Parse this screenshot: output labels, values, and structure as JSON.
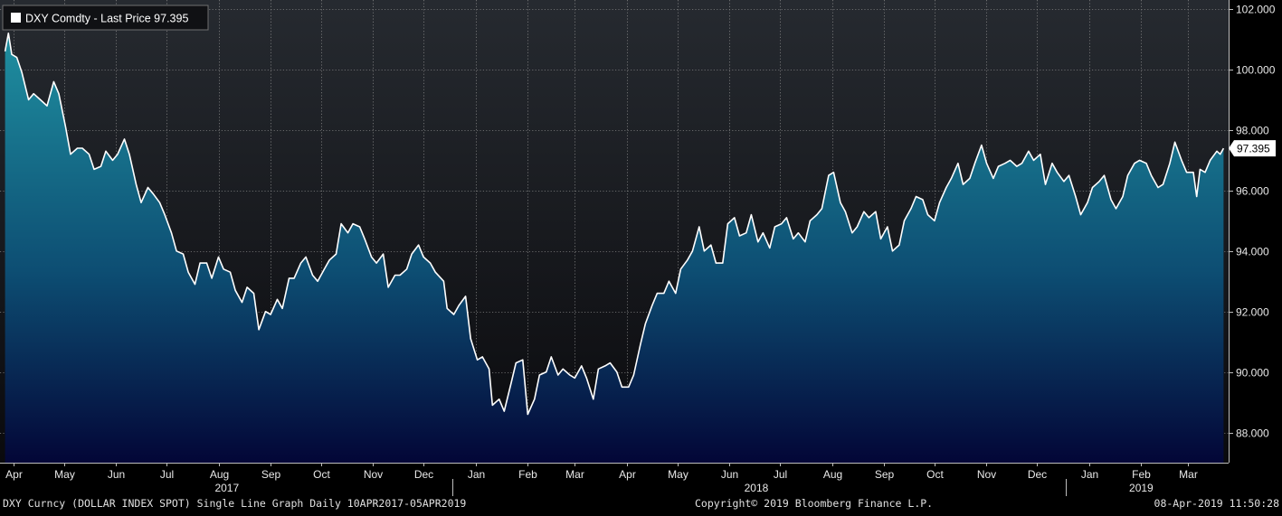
{
  "legend": {
    "label": "DXY Comdty - Last Price 97.395",
    "swatch_color": "#ffffff"
  },
  "last_price_label": "97.395",
  "footer": {
    "left": "DXY Curncy (DOLLAR INDEX SPOT) Single Line Graph  Daily 10APR2017-05APR2019",
    "center": "Copyright© 2019 Bloomberg Finance L.P.",
    "right": "08-Apr-2019 11:50:28"
  },
  "colors": {
    "background": "#000000",
    "plot_top": "#262a30",
    "plot_bottom": "#0a0a0d",
    "area_top": "#1f8fa0",
    "area_mid": "#0d4e73",
    "area_bottom": "#030637",
    "line": "#ffffff",
    "grid": "#8a8a8a"
  },
  "chart_data": {
    "type": "area",
    "title": "DXY Comdty - Last Price 97.395",
    "xlabel": "",
    "ylabel": "",
    "ylim": [
      87,
      102.3
    ],
    "yticks": [
      88,
      90,
      92,
      94,
      96,
      98,
      100,
      102
    ],
    "ytick_labels": [
      "88.000",
      "90.000",
      "92.000",
      "94.000",
      "96.000",
      "98.000",
      "100.000",
      "102.000"
    ],
    "xlim": [
      "2017-04-07",
      "2019-04-08"
    ],
    "grid": true,
    "legend_position": "top-left",
    "x_month_ticks": [
      {
        "label": "Apr",
        "date": "2017-04-15"
      },
      {
        "label": "May",
        "date": "2017-05-15"
      },
      {
        "label": "Jun",
        "date": "2017-06-15"
      },
      {
        "label": "Jul",
        "date": "2017-07-15"
      },
      {
        "label": "Aug",
        "date": "2017-08-15"
      },
      {
        "label": "Sep",
        "date": "2017-09-15"
      },
      {
        "label": "Oct",
        "date": "2017-10-15"
      },
      {
        "label": "Nov",
        "date": "2017-11-15"
      },
      {
        "label": "Dec",
        "date": "2017-12-15"
      },
      {
        "label": "Jan",
        "date": "2018-01-15"
      },
      {
        "label": "Feb",
        "date": "2018-02-15"
      },
      {
        "label": "Mar",
        "date": "2018-03-15"
      },
      {
        "label": "Apr",
        "date": "2018-04-15"
      },
      {
        "label": "May",
        "date": "2018-05-15"
      },
      {
        "label": "Jun",
        "date": "2018-06-15"
      },
      {
        "label": "Jul",
        "date": "2018-07-15"
      },
      {
        "label": "Aug",
        "date": "2018-08-15"
      },
      {
        "label": "Sep",
        "date": "2018-09-15"
      },
      {
        "label": "Oct",
        "date": "2018-10-15"
      },
      {
        "label": "Nov",
        "date": "2018-11-15"
      },
      {
        "label": "Dec",
        "date": "2018-12-15"
      },
      {
        "label": "Jan",
        "date": "2019-01-15"
      },
      {
        "label": "Feb",
        "date": "2019-02-15"
      },
      {
        "label": "Mar",
        "date": "2019-03-15"
      }
    ],
    "x_year_labels": [
      {
        "label": "2017",
        "date": "2017-08-20"
      },
      {
        "label": "2018",
        "date": "2018-07-01"
      },
      {
        "label": "2019",
        "date": "2019-02-15"
      }
    ],
    "year_boundaries": [
      "2018-01-01",
      "2019-01-01"
    ],
    "series": [
      {
        "name": "DXY Comdty - Last Price",
        "points": [
          [
            "2017-04-10",
            100.6
          ],
          [
            "2017-04-12",
            101.2
          ],
          [
            "2017-04-14",
            100.5
          ],
          [
            "2017-04-17",
            100.4
          ],
          [
            "2017-04-20",
            99.9
          ],
          [
            "2017-04-24",
            99.0
          ],
          [
            "2017-04-27",
            99.2
          ],
          [
            "2017-05-01",
            99.0
          ],
          [
            "2017-05-05",
            98.8
          ],
          [
            "2017-05-09",
            99.6
          ],
          [
            "2017-05-12",
            99.2
          ],
          [
            "2017-05-16",
            98.1
          ],
          [
            "2017-05-19",
            97.2
          ],
          [
            "2017-05-23",
            97.4
          ],
          [
            "2017-05-26",
            97.4
          ],
          [
            "2017-05-30",
            97.2
          ],
          [
            "2017-06-02",
            96.7
          ],
          [
            "2017-06-06",
            96.8
          ],
          [
            "2017-06-09",
            97.3
          ],
          [
            "2017-06-13",
            97.0
          ],
          [
            "2017-06-16",
            97.2
          ],
          [
            "2017-06-20",
            97.7
          ],
          [
            "2017-06-23",
            97.2
          ],
          [
            "2017-06-27",
            96.2
          ],
          [
            "2017-06-30",
            95.6
          ],
          [
            "2017-07-04",
            96.1
          ],
          [
            "2017-07-07",
            95.9
          ],
          [
            "2017-07-11",
            95.6
          ],
          [
            "2017-07-14",
            95.2
          ],
          [
            "2017-07-18",
            94.6
          ],
          [
            "2017-07-21",
            94.0
          ],
          [
            "2017-07-25",
            93.9
          ],
          [
            "2017-07-28",
            93.3
          ],
          [
            "2017-08-01",
            92.9
          ],
          [
            "2017-08-04",
            93.6
          ],
          [
            "2017-08-08",
            93.6
          ],
          [
            "2017-08-11",
            93.1
          ],
          [
            "2017-08-15",
            93.8
          ],
          [
            "2017-08-18",
            93.4
          ],
          [
            "2017-08-22",
            93.3
          ],
          [
            "2017-08-25",
            92.7
          ],
          [
            "2017-08-29",
            92.3
          ],
          [
            "2017-09-01",
            92.8
          ],
          [
            "2017-09-05",
            92.6
          ],
          [
            "2017-09-08",
            91.4
          ],
          [
            "2017-09-12",
            92.0
          ],
          [
            "2017-09-15",
            91.9
          ],
          [
            "2017-09-19",
            92.4
          ],
          [
            "2017-09-22",
            92.1
          ],
          [
            "2017-09-26",
            93.1
          ],
          [
            "2017-09-29",
            93.1
          ],
          [
            "2017-10-03",
            93.6
          ],
          [
            "2017-10-06",
            93.8
          ],
          [
            "2017-10-10",
            93.2
          ],
          [
            "2017-10-13",
            93.0
          ],
          [
            "2017-10-17",
            93.4
          ],
          [
            "2017-10-20",
            93.7
          ],
          [
            "2017-10-24",
            93.9
          ],
          [
            "2017-10-27",
            94.9
          ],
          [
            "2017-10-31",
            94.6
          ],
          [
            "2017-11-03",
            94.9
          ],
          [
            "2017-11-07",
            94.8
          ],
          [
            "2017-11-10",
            94.4
          ],
          [
            "2017-11-14",
            93.8
          ],
          [
            "2017-11-17",
            93.6
          ],
          [
            "2017-11-21",
            93.9
          ],
          [
            "2017-11-24",
            92.8
          ],
          [
            "2017-11-28",
            93.2
          ],
          [
            "2017-12-01",
            93.2
          ],
          [
            "2017-12-05",
            93.4
          ],
          [
            "2017-12-08",
            93.9
          ],
          [
            "2017-12-12",
            94.2
          ],
          [
            "2017-12-15",
            93.8
          ],
          [
            "2017-12-19",
            93.6
          ],
          [
            "2017-12-22",
            93.3
          ],
          [
            "2017-12-27",
            93.0
          ],
          [
            "2017-12-29",
            92.1
          ],
          [
            "2018-01-02",
            91.9
          ],
          [
            "2018-01-05",
            92.2
          ],
          [
            "2018-01-09",
            92.5
          ],
          [
            "2018-01-12",
            91.1
          ],
          [
            "2018-01-16",
            90.4
          ],
          [
            "2018-01-19",
            90.5
          ],
          [
            "2018-01-23",
            90.1
          ],
          [
            "2018-01-25",
            88.9
          ],
          [
            "2018-01-29",
            89.1
          ],
          [
            "2018-02-01",
            88.7
          ],
          [
            "2018-02-05",
            89.6
          ],
          [
            "2018-02-08",
            90.3
          ],
          [
            "2018-02-12",
            90.4
          ],
          [
            "2018-02-15",
            88.6
          ],
          [
            "2018-02-19",
            89.1
          ],
          [
            "2018-02-22",
            89.9
          ],
          [
            "2018-02-26",
            90.0
          ],
          [
            "2018-03-01",
            90.5
          ],
          [
            "2018-03-05",
            89.9
          ],
          [
            "2018-03-08",
            90.1
          ],
          [
            "2018-03-12",
            89.9
          ],
          [
            "2018-03-15",
            89.8
          ],
          [
            "2018-03-19",
            90.2
          ],
          [
            "2018-03-22",
            89.8
          ],
          [
            "2018-03-26",
            89.1
          ],
          [
            "2018-03-29",
            90.1
          ],
          [
            "2018-04-02",
            90.2
          ],
          [
            "2018-04-05",
            90.3
          ],
          [
            "2018-04-09",
            90.0
          ],
          [
            "2018-04-12",
            89.5
          ],
          [
            "2018-04-16",
            89.5
          ],
          [
            "2018-04-19",
            89.9
          ],
          [
            "2018-04-23",
            90.9
          ],
          [
            "2018-04-26",
            91.6
          ],
          [
            "2018-04-30",
            92.2
          ],
          [
            "2018-05-03",
            92.6
          ],
          [
            "2018-05-07",
            92.6
          ],
          [
            "2018-05-10",
            93.0
          ],
          [
            "2018-05-14",
            92.6
          ],
          [
            "2018-05-17",
            93.4
          ],
          [
            "2018-05-21",
            93.7
          ],
          [
            "2018-05-24",
            94.0
          ],
          [
            "2018-05-28",
            94.8
          ],
          [
            "2018-05-31",
            94.0
          ],
          [
            "2018-06-04",
            94.2
          ],
          [
            "2018-06-07",
            93.6
          ],
          [
            "2018-06-11",
            93.6
          ],
          [
            "2018-06-14",
            94.9
          ],
          [
            "2018-06-18",
            95.1
          ],
          [
            "2018-06-21",
            94.5
          ],
          [
            "2018-06-25",
            94.6
          ],
          [
            "2018-06-28",
            95.2
          ],
          [
            "2018-07-02",
            94.3
          ],
          [
            "2018-07-05",
            94.6
          ],
          [
            "2018-07-09",
            94.1
          ],
          [
            "2018-07-12",
            94.8
          ],
          [
            "2018-07-16",
            94.9
          ],
          [
            "2018-07-19",
            95.1
          ],
          [
            "2018-07-23",
            94.4
          ],
          [
            "2018-07-26",
            94.6
          ],
          [
            "2018-07-30",
            94.3
          ],
          [
            "2018-08-02",
            95.0
          ],
          [
            "2018-08-06",
            95.2
          ],
          [
            "2018-08-09",
            95.4
          ],
          [
            "2018-08-13",
            96.5
          ],
          [
            "2018-08-16",
            96.6
          ],
          [
            "2018-08-20",
            95.6
          ],
          [
            "2018-08-23",
            95.3
          ],
          [
            "2018-08-27",
            94.6
          ],
          [
            "2018-08-30",
            94.8
          ],
          [
            "2018-09-03",
            95.3
          ],
          [
            "2018-09-06",
            95.1
          ],
          [
            "2018-09-10",
            95.3
          ],
          [
            "2018-09-13",
            94.4
          ],
          [
            "2018-09-17",
            94.8
          ],
          [
            "2018-09-20",
            94.0
          ],
          [
            "2018-09-24",
            94.2
          ],
          [
            "2018-09-27",
            95.0
          ],
          [
            "2018-10-01",
            95.4
          ],
          [
            "2018-10-04",
            95.8
          ],
          [
            "2018-10-08",
            95.7
          ],
          [
            "2018-10-11",
            95.2
          ],
          [
            "2018-10-15",
            95.0
          ],
          [
            "2018-10-18",
            95.6
          ],
          [
            "2018-10-22",
            96.1
          ],
          [
            "2018-10-25",
            96.4
          ],
          [
            "2018-10-29",
            96.9
          ],
          [
            "2018-11-01",
            96.2
          ],
          [
            "2018-11-05",
            96.4
          ],
          [
            "2018-11-08",
            96.9
          ],
          [
            "2018-11-12",
            97.5
          ],
          [
            "2018-11-15",
            96.9
          ],
          [
            "2018-11-19",
            96.4
          ],
          [
            "2018-11-22",
            96.8
          ],
          [
            "2018-11-26",
            96.9
          ],
          [
            "2018-11-29",
            97.0
          ],
          [
            "2018-12-03",
            96.8
          ],
          [
            "2018-12-06",
            96.9
          ],
          [
            "2018-12-10",
            97.3
          ],
          [
            "2018-12-13",
            97.0
          ],
          [
            "2018-12-17",
            97.2
          ],
          [
            "2018-12-20",
            96.2
          ],
          [
            "2018-12-24",
            96.9
          ],
          [
            "2018-12-27",
            96.6
          ],
          [
            "2018-12-31",
            96.3
          ],
          [
            "2019-01-03",
            96.5
          ],
          [
            "2019-01-07",
            95.8
          ],
          [
            "2019-01-10",
            95.2
          ],
          [
            "2019-01-14",
            95.6
          ],
          [
            "2019-01-17",
            96.1
          ],
          [
            "2019-01-21",
            96.3
          ],
          [
            "2019-01-24",
            96.5
          ],
          [
            "2019-01-28",
            95.7
          ],
          [
            "2019-01-31",
            95.4
          ],
          [
            "2019-02-04",
            95.8
          ],
          [
            "2019-02-07",
            96.5
          ],
          [
            "2019-02-11",
            96.9
          ],
          [
            "2019-02-14",
            97.0
          ],
          [
            "2019-02-18",
            96.9
          ],
          [
            "2019-02-21",
            96.5
          ],
          [
            "2019-02-25",
            96.1
          ],
          [
            "2019-02-28",
            96.2
          ],
          [
            "2019-03-04",
            96.9
          ],
          [
            "2019-03-07",
            97.6
          ],
          [
            "2019-03-11",
            97.0
          ],
          [
            "2019-03-14",
            96.6
          ],
          [
            "2019-03-18",
            96.6
          ],
          [
            "2019-03-20",
            95.8
          ],
          [
            "2019-03-22",
            96.7
          ],
          [
            "2019-03-25",
            96.6
          ],
          [
            "2019-03-28",
            97.0
          ],
          [
            "2019-04-01",
            97.3
          ],
          [
            "2019-04-03",
            97.2
          ],
          [
            "2019-04-05",
            97.395
          ]
        ]
      }
    ]
  }
}
